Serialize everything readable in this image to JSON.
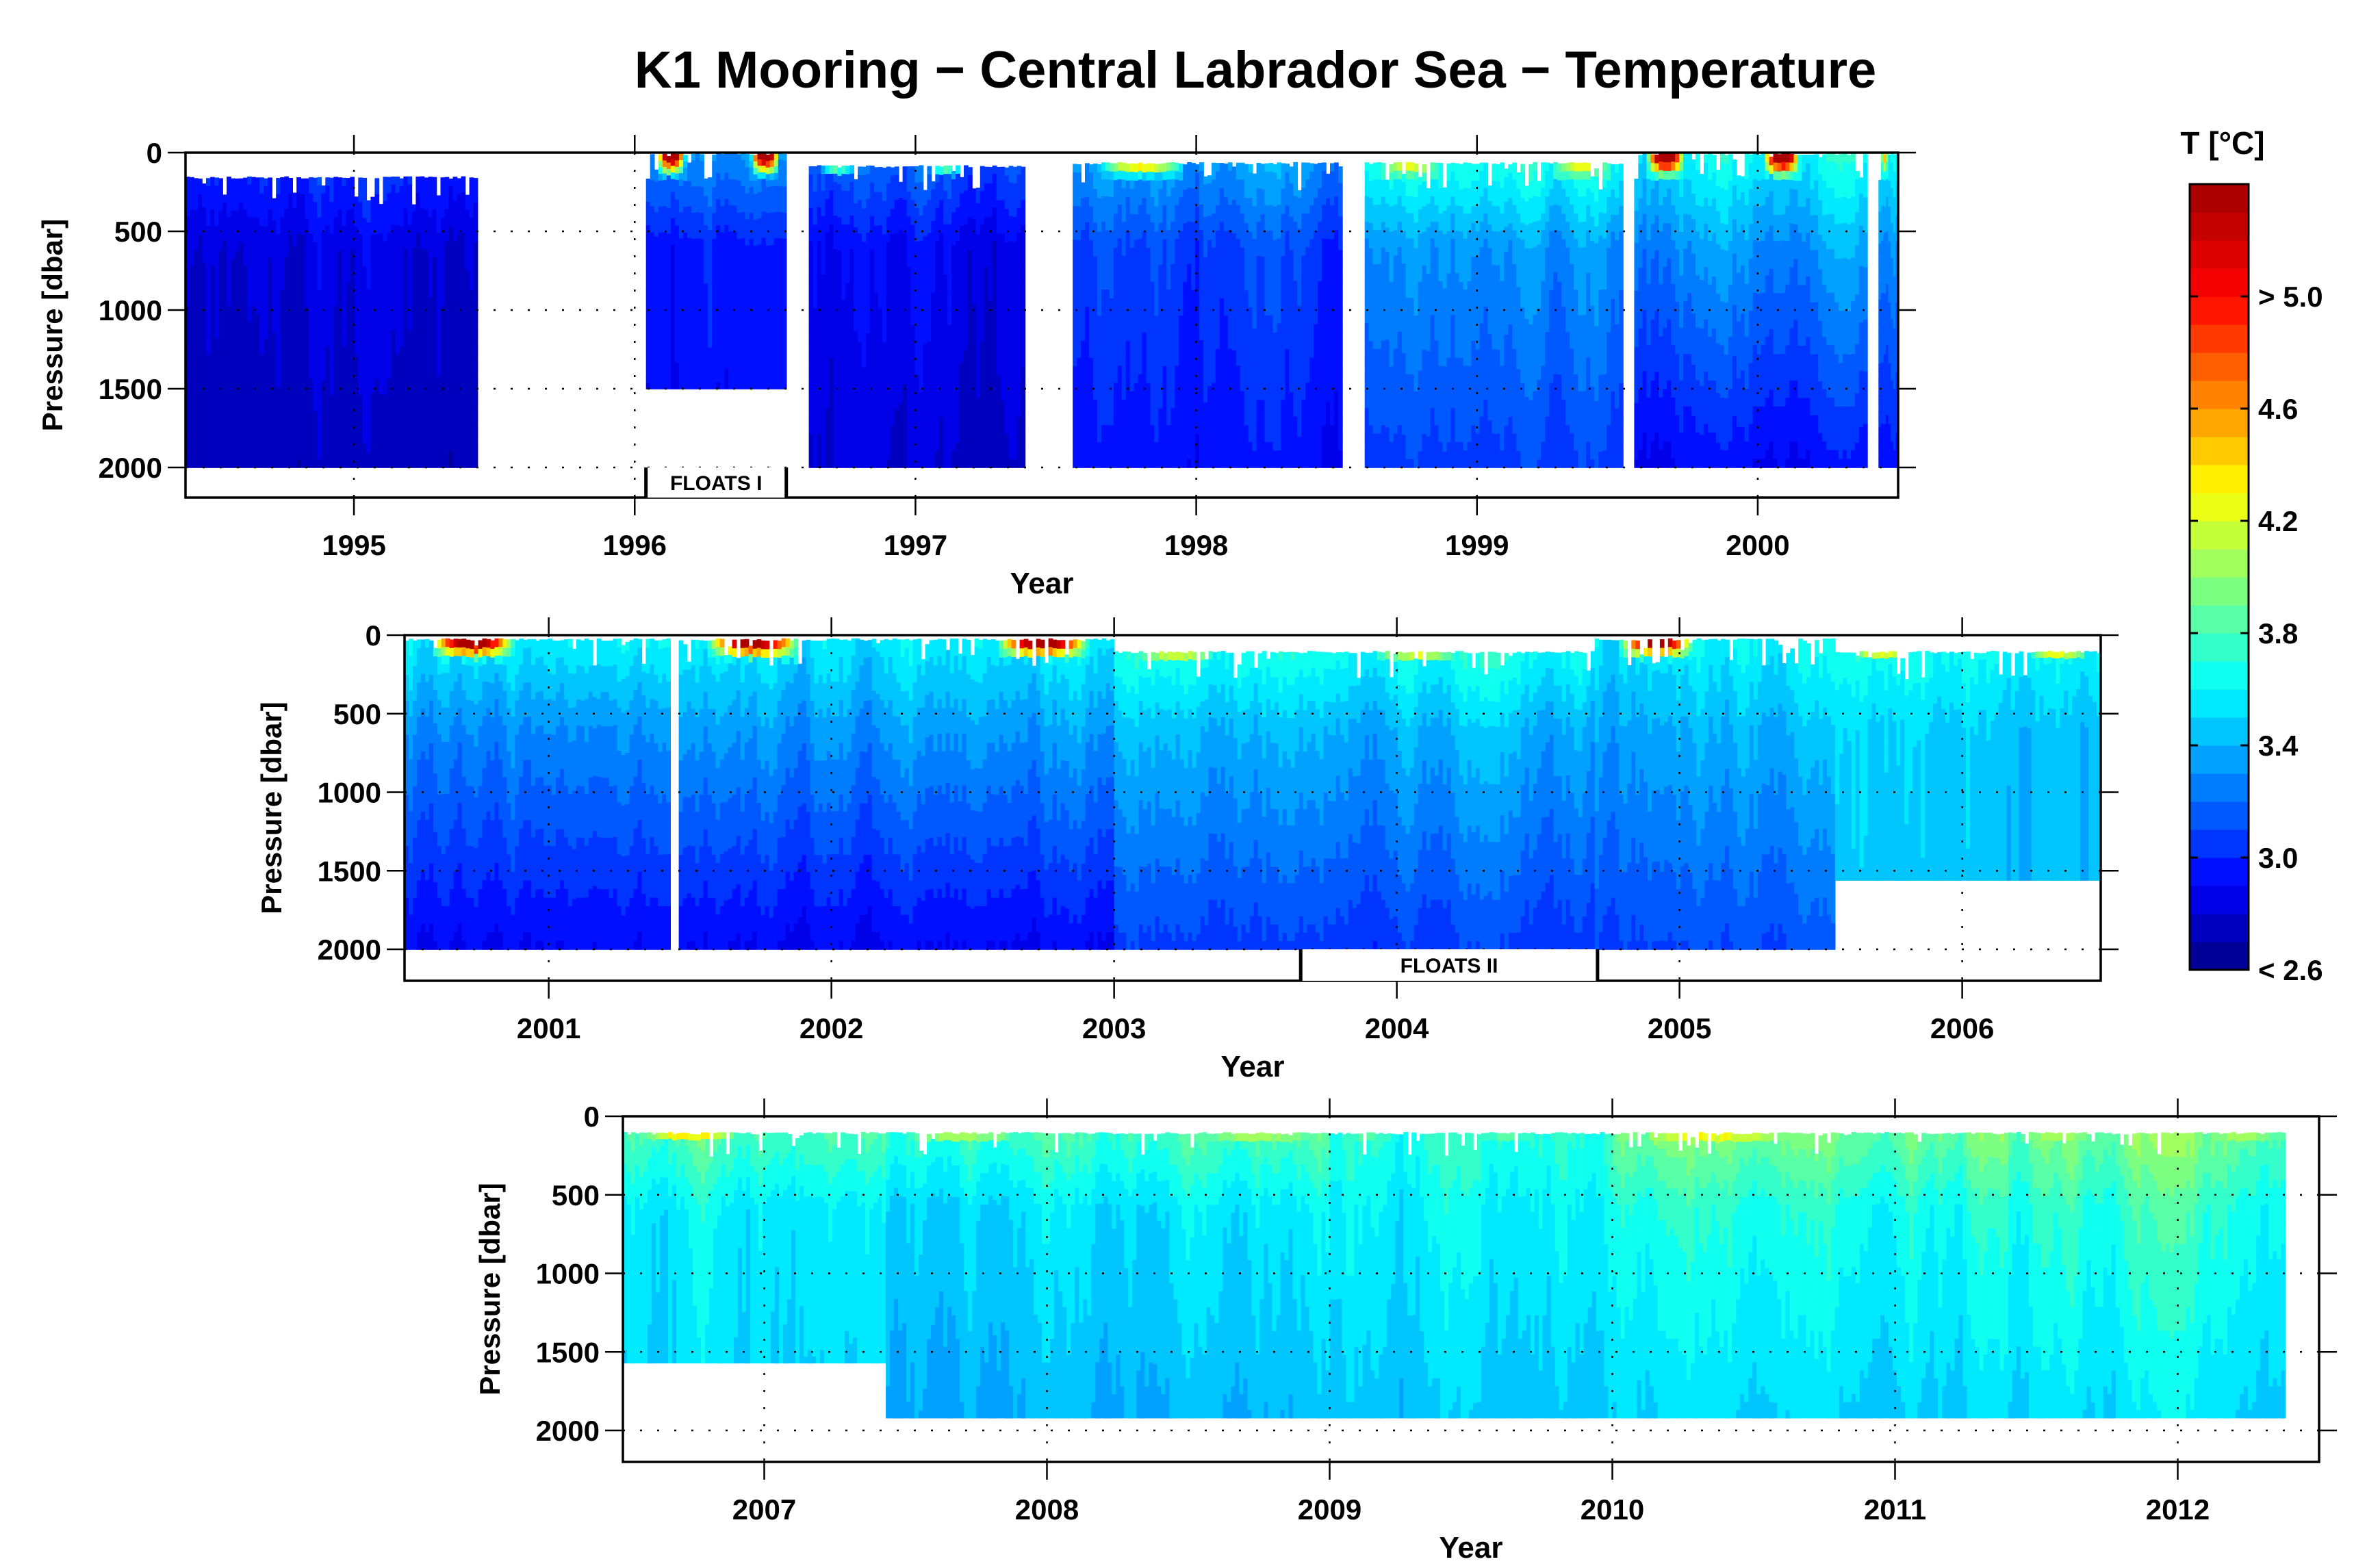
{
  "chart_data": {
    "type": "heatmap",
    "title": "K1 Mooring − Central Labrador Sea −  Temperature",
    "colorbar": {
      "label": "T [°C]",
      "min": 2.6,
      "max": 5.4,
      "step": 0.1,
      "ticks": [
        {
          "value": 5.0,
          "label": "> 5.0"
        },
        {
          "value": 4.6,
          "label": "4.6"
        },
        {
          "value": 4.2,
          "label": "4.2"
        },
        {
          "value": 3.8,
          "label": "3.8"
        },
        {
          "value": 3.4,
          "label": "3.4"
        },
        {
          "value": 3.0,
          "label": "3.0"
        },
        {
          "value": 2.6,
          "label": "< 2.6"
        }
      ],
      "colors": [
        "#00007f",
        "#000094",
        "#0000ab",
        "#0000c4",
        "#0000e0",
        "#0000ff",
        "#0022ff",
        "#0044ff",
        "#0066ff",
        "#0088ff",
        "#00aaff",
        "#00ccff",
        "#00e5ff",
        "#00ffff",
        "#22ffd4",
        "#44ffaa",
        "#66ff88",
        "#88ff66",
        "#aaff44",
        "#ccff22",
        "#e5ff00",
        "#ffff00",
        "#ffd400",
        "#ffaa00",
        "#ff8800",
        "#ff6600",
        "#ff4400",
        "#ff2200",
        "#ff0000",
        "#d40000",
        "#aa0000"
      ]
    },
    "panels": [
      {
        "xlabel": "Year",
        "ylabel": "Pressure [dbar]",
        "xlim": [
          1994.4,
          2000.5
        ],
        "ylim": [
          2200,
          0
        ],
        "xticks": [
          1995,
          1996,
          1997,
          1998,
          1999,
          2000
        ],
        "yticks": [
          0,
          500,
          1000,
          1500,
          2000
        ],
        "grid": "dotted",
        "annotations": [
          {
            "label": "FLOATS I",
            "x_start": 1996.04,
            "x_end": 1996.54
          }
        ],
        "segments": [
          {
            "x_start": 1994.4,
            "x_end": 1995.44,
            "p_top": 150,
            "p_bottom": 2000,
            "surface_temp": 3.1,
            "mid_temp": 2.85,
            "deep_temp": 2.75
          },
          {
            "x_start": 1996.04,
            "x_end": 1996.54,
            "p_top": 0,
            "p_bottom": 1500,
            "surface_temp": 3.3,
            "mid_temp": 2.95,
            "deep_temp": 2.9,
            "warm_cap": 5.2
          },
          {
            "x_start": 1996.62,
            "x_end": 1997.39,
            "p_top": 80,
            "p_bottom": 2000,
            "surface_temp": 3.2,
            "mid_temp": 2.9,
            "deep_temp": 2.8,
            "warm_cap": 4.4
          },
          {
            "x_start": 1997.56,
            "x_end": 1998.52,
            "p_top": 60,
            "p_bottom": 2000,
            "surface_temp": 3.4,
            "mid_temp": 3.1,
            "deep_temp": 2.95,
            "warm_cap": 4.8
          },
          {
            "x_start": 1998.6,
            "x_end": 1999.52,
            "p_top": 60,
            "p_bottom": 2000,
            "surface_temp": 3.7,
            "mid_temp": 3.3,
            "deep_temp": 3.05,
            "warm_cap": 4.5
          },
          {
            "x_start": 1999.56,
            "x_end": 2000.39,
            "p_top": 0,
            "p_bottom": 2000,
            "surface_temp": 3.6,
            "mid_temp": 3.3,
            "deep_temp": 2.9,
            "warm_cap": 5.4
          },
          {
            "x_start": 2000.43,
            "x_end": 2000.5,
            "p_top": 0,
            "p_bottom": 2000,
            "surface_temp": 3.6,
            "mid_temp": 3.3,
            "deep_temp": 2.95,
            "warm_cap": 4.3
          }
        ]
      },
      {
        "xlabel": "Year",
        "ylabel": "Pressure [dbar]",
        "xlim": [
          2000.49,
          2006.49
        ],
        "ylim": [
          2200,
          0
        ],
        "xticks": [
          2001,
          2002,
          2003,
          2004,
          2005,
          2006
        ],
        "yticks": [
          0,
          500,
          1000,
          1500,
          2000
        ],
        "grid": "dotted",
        "annotations": [
          {
            "label": "FLOATS II",
            "x_start": 2003.66,
            "x_end": 2004.71
          }
        ],
        "segments": [
          {
            "x_start": 2000.49,
            "x_end": 2001.43,
            "p_top": 20,
            "p_bottom": 2000,
            "surface_temp": 3.6,
            "mid_temp": 3.3,
            "deep_temp": 2.9,
            "warm_cap": 5.4
          },
          {
            "x_start": 2001.46,
            "x_end": 2003.0,
            "p_top": 20,
            "p_bottom": 2000,
            "surface_temp": 3.6,
            "mid_temp": 3.35,
            "deep_temp": 2.9,
            "warm_cap": 5.4
          },
          {
            "x_start": 2003.0,
            "x_end": 2004.7,
            "p_top": 100,
            "p_bottom": 2000,
            "surface_temp": 3.7,
            "mid_temp": 3.4,
            "deep_temp": 3.05,
            "warm_cap": 5.4
          },
          {
            "x_start": 2004.7,
            "x_end": 2005.55,
            "p_top": 20,
            "p_bottom": 2000,
            "surface_temp": 3.6,
            "mid_temp": 3.4,
            "deep_temp": 3.1,
            "warm_cap": 5.3
          },
          {
            "x_start": 2005.55,
            "x_end": 2006.49,
            "p_top": 100,
            "p_bottom": 1560,
            "surface_temp": 3.7,
            "mid_temp": 3.5,
            "deep_temp": 3.45,
            "warm_cap": 5.3
          }
        ]
      },
      {
        "xlabel": "Year",
        "ylabel": "Pressure [dbar]",
        "xlim": [
          2006.5,
          2012.5
        ],
        "ylim": [
          2200,
          0
        ],
        "xticks": [
          2007,
          2008,
          2009,
          2010,
          2011,
          2012
        ],
        "yticks": [
          0,
          500,
          1000,
          1500,
          2000
        ],
        "grid": "dotted",
        "annotations": [],
        "segments": [
          {
            "x_start": 2006.5,
            "x_end": 2007.43,
            "p_top": 100,
            "p_bottom": 1570,
            "surface_temp": 3.9,
            "mid_temp": 3.6,
            "deep_temp": 3.5,
            "warm_cap": 5.3
          },
          {
            "x_start": 2007.43,
            "x_end": 2009.0,
            "p_top": 100,
            "p_bottom": 1920,
            "surface_temp": 3.85,
            "mid_temp": 3.55,
            "deep_temp": 3.4,
            "warm_cap": 4.6
          },
          {
            "x_start": 2009.0,
            "x_end": 2010.0,
            "p_top": 100,
            "p_bottom": 1920,
            "surface_temp": 3.75,
            "mid_temp": 3.6,
            "deep_temp": 3.45,
            "warm_cap": 4.0
          },
          {
            "x_start": 2010.0,
            "x_end": 2011.4,
            "p_top": 100,
            "p_bottom": 1920,
            "surface_temp": 4.0,
            "mid_temp": 3.7,
            "deep_temp": 3.5,
            "warm_cap": 5.0
          },
          {
            "x_start": 2011.4,
            "x_end": 2012.38,
            "p_top": 100,
            "p_bottom": 1920,
            "surface_temp": 3.95,
            "mid_temp": 3.7,
            "deep_temp": 3.5,
            "warm_cap": 4.2
          }
        ]
      }
    ]
  }
}
